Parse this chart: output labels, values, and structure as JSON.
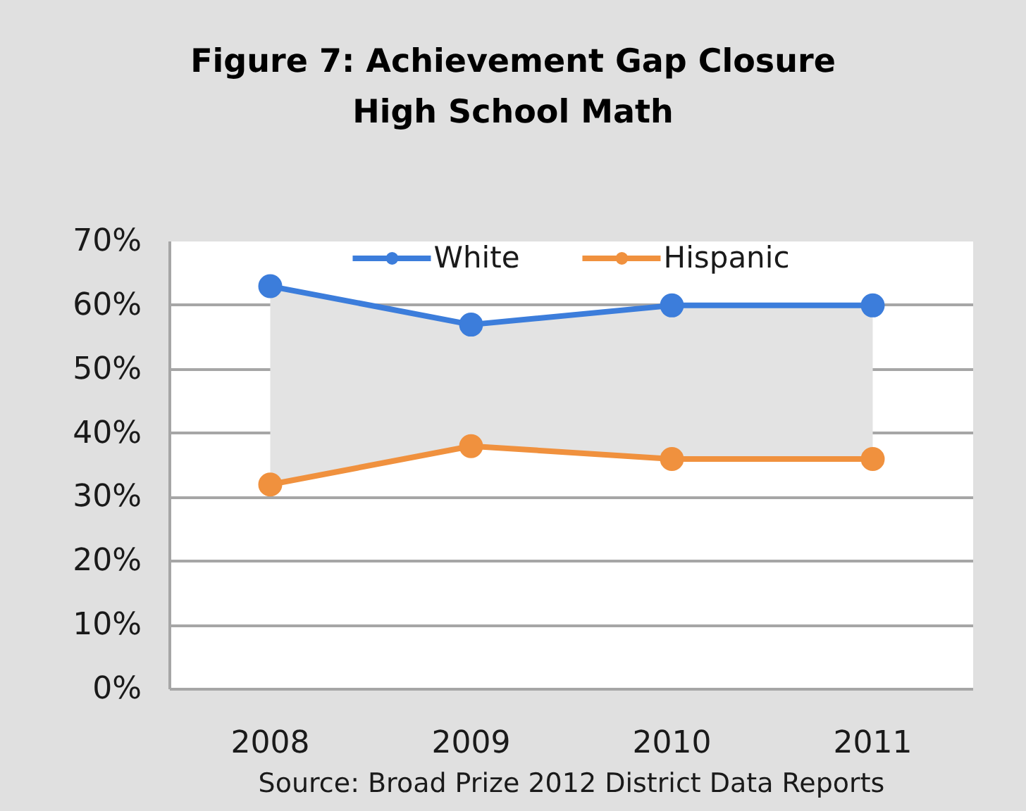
{
  "chart_data": {
    "type": "line",
    "title": "Figure 7: Achievement Gap Closure\nHigh School Math",
    "categories": [
      "2008",
      "2009",
      "2010",
      "2011"
    ],
    "series": [
      {
        "name": "White",
        "color": "#3c7ddb",
        "values": [
          63,
          57,
          60,
          60
        ],
        "lower": [
          32,
          38,
          36,
          36
        ],
        "upper": [
          63,
          57,
          60,
          60
        ]
      },
      {
        "name": "Hispanic",
        "color": "#f0913e",
        "values": [
          32,
          38,
          36,
          36
        ]
      }
    ],
    "ylim": [
      0,
      70
    ],
    "yticks": [
      {
        "value": 0,
        "label": "0%"
      },
      {
        "value": 10,
        "label": "10%"
      },
      {
        "value": 20,
        "label": "20%"
      },
      {
        "value": 30,
        "label": "30%"
      },
      {
        "value": 40,
        "label": "40%"
      },
      {
        "value": 50,
        "label": "50%"
      },
      {
        "value": 60,
        "label": "60%"
      },
      {
        "value": 70,
        "label": "70%"
      }
    ],
    "grid": "y",
    "legend": "top",
    "marker": "circle",
    "line_style": "solid",
    "annotations": [
      "Source: Broad Prize 2012 District Data Reports"
    ]
  }
}
